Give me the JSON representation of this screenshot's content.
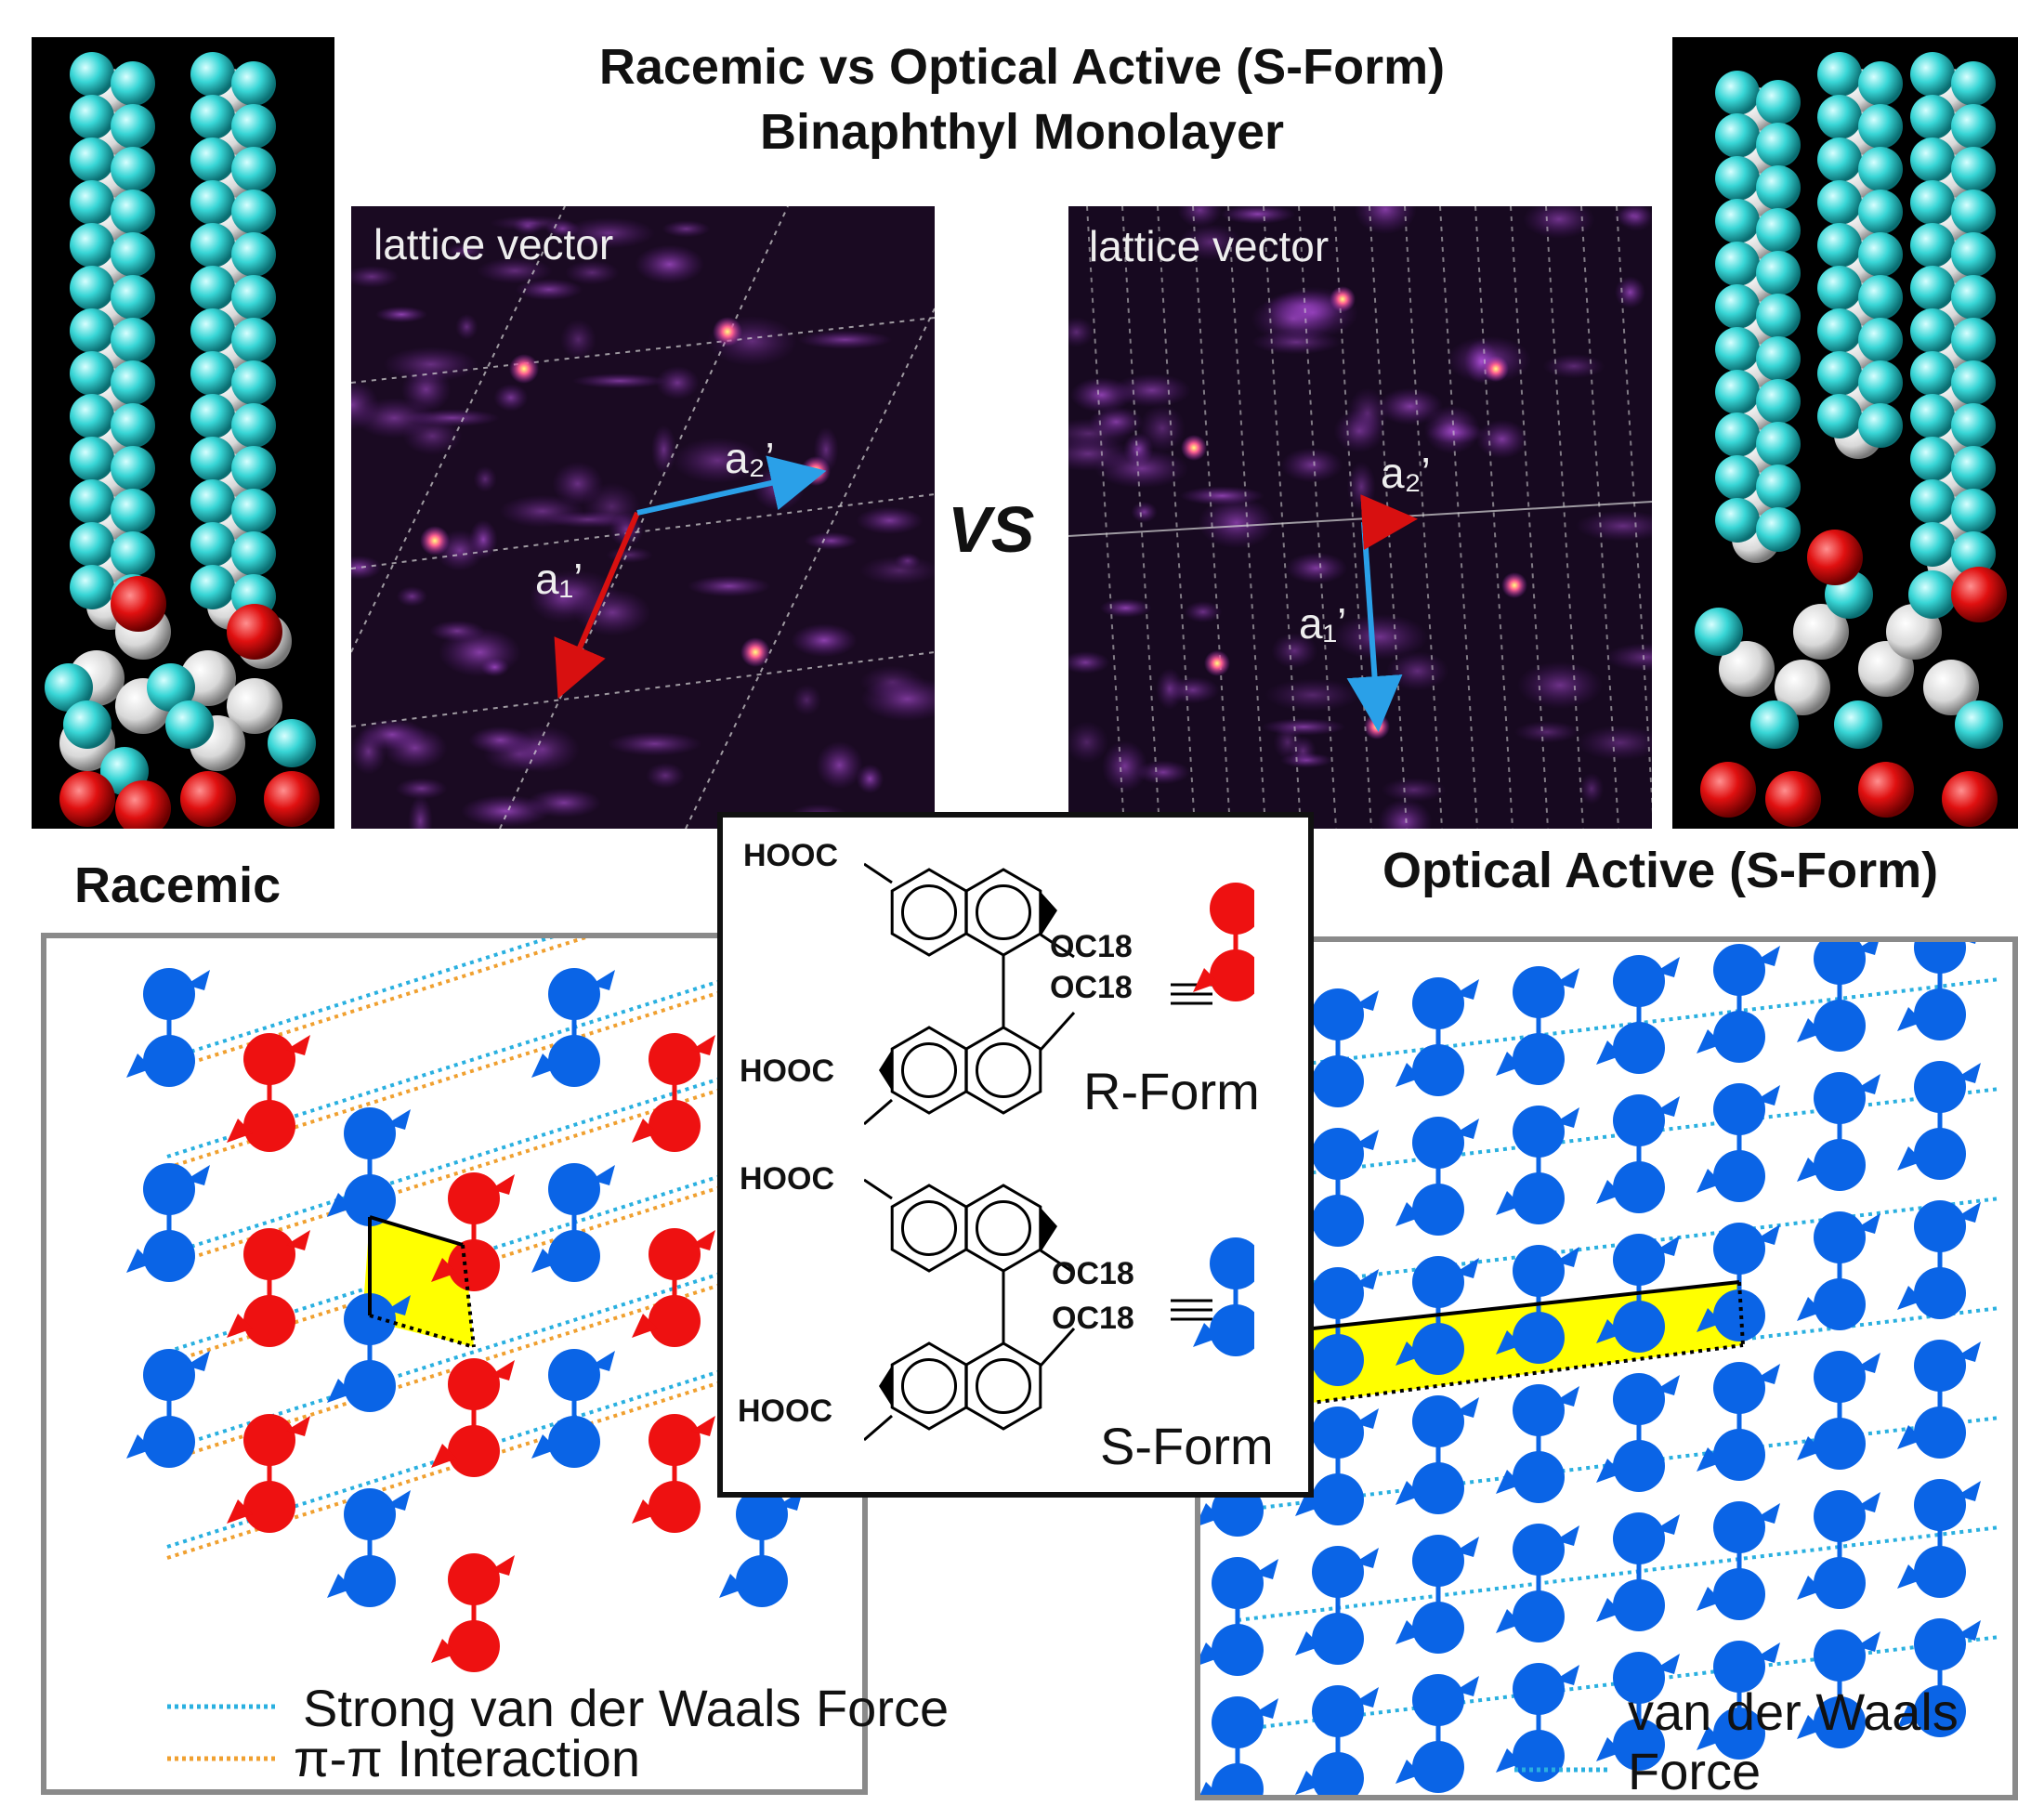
{
  "title": {
    "line1": "Racemic vs Optical Active (S-Form)",
    "line2": "Binaphthyl Monolayer"
  },
  "vs_label": "VS",
  "stm_left": {
    "label": "lattice vector",
    "a1_label": "a₁’",
    "a2_label": "a₂’"
  },
  "stm_right": {
    "label": "lattice vector",
    "a1_label": "a₁’",
    "a2_label": "a₂’"
  },
  "left_heading": "Racemic",
  "right_heading": "Optical Active (S-Form)",
  "center": {
    "r_form": {
      "hooc_top": "HOOC",
      "hooc_bottom": "HOOC",
      "oc18_top": "OC18",
      "oc18_bottom": "OC18",
      "label": "R-Form"
    },
    "s_form": {
      "hooc_top": "HOOC",
      "hooc_bottom": "HOOC",
      "oc18_top": "OC18",
      "oc18_bottom": "OC18",
      "label": "S-Form"
    }
  },
  "left_legend": {
    "strong_vdw": "Strong van der Waals Force",
    "pi_pi": "π-π Interaction"
  },
  "right_legend": {
    "vdw_line1": "van der Waals",
    "vdw_line2": "Force"
  },
  "colors": {
    "molecule_blue": "#0a64e6",
    "molecule_red": "#ee1111",
    "cell_yellow": "#ffff00",
    "vdw_line": "#2ab0e0",
    "pipi_line": "#f0a030",
    "stm_background": "#1a0a22",
    "stm_glow": "#b040d8",
    "sphere_cyan": "#3ad8d8",
    "sphere_red": "#e01010",
    "arrow_red": "#d81010",
    "arrow_blue": "#2aa0e8"
  }
}
